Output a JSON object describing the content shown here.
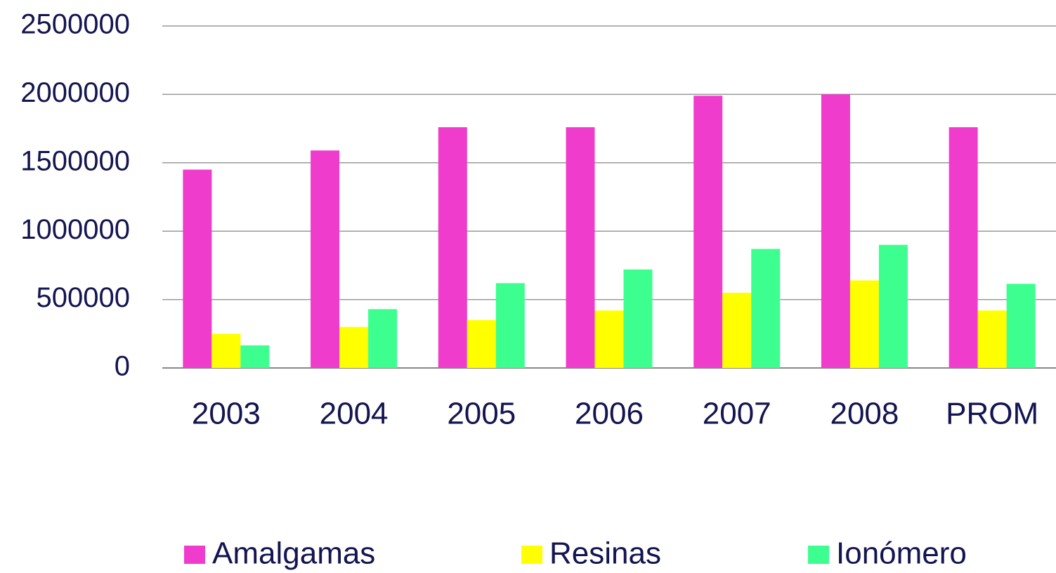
{
  "chart_data": {
    "type": "bar",
    "categories": [
      "2003",
      "2004",
      "2005",
      "2006",
      "2007",
      "2008",
      "PROM"
    ],
    "series": [
      {
        "name": "Amalgamas",
        "color": "#f03ccc",
        "values": [
          1450000,
          1590000,
          1760000,
          1760000,
          1990000,
          2000000,
          1760000
        ]
      },
      {
        "name": "Resinas",
        "color": "#ffff00",
        "values": [
          250000,
          300000,
          350000,
          420000,
          550000,
          640000,
          420000
        ]
      },
      {
        "name": "Ionómero",
        "color": "#3cff90",
        "values": [
          165000,
          430000,
          620000,
          720000,
          870000,
          900000,
          615000
        ]
      }
    ],
    "ylim": [
      0,
      2500000
    ],
    "yticks": [
      0,
      500000,
      1000000,
      1500000,
      2000000,
      2500000
    ],
    "grid": true,
    "legend": "bottom"
  }
}
